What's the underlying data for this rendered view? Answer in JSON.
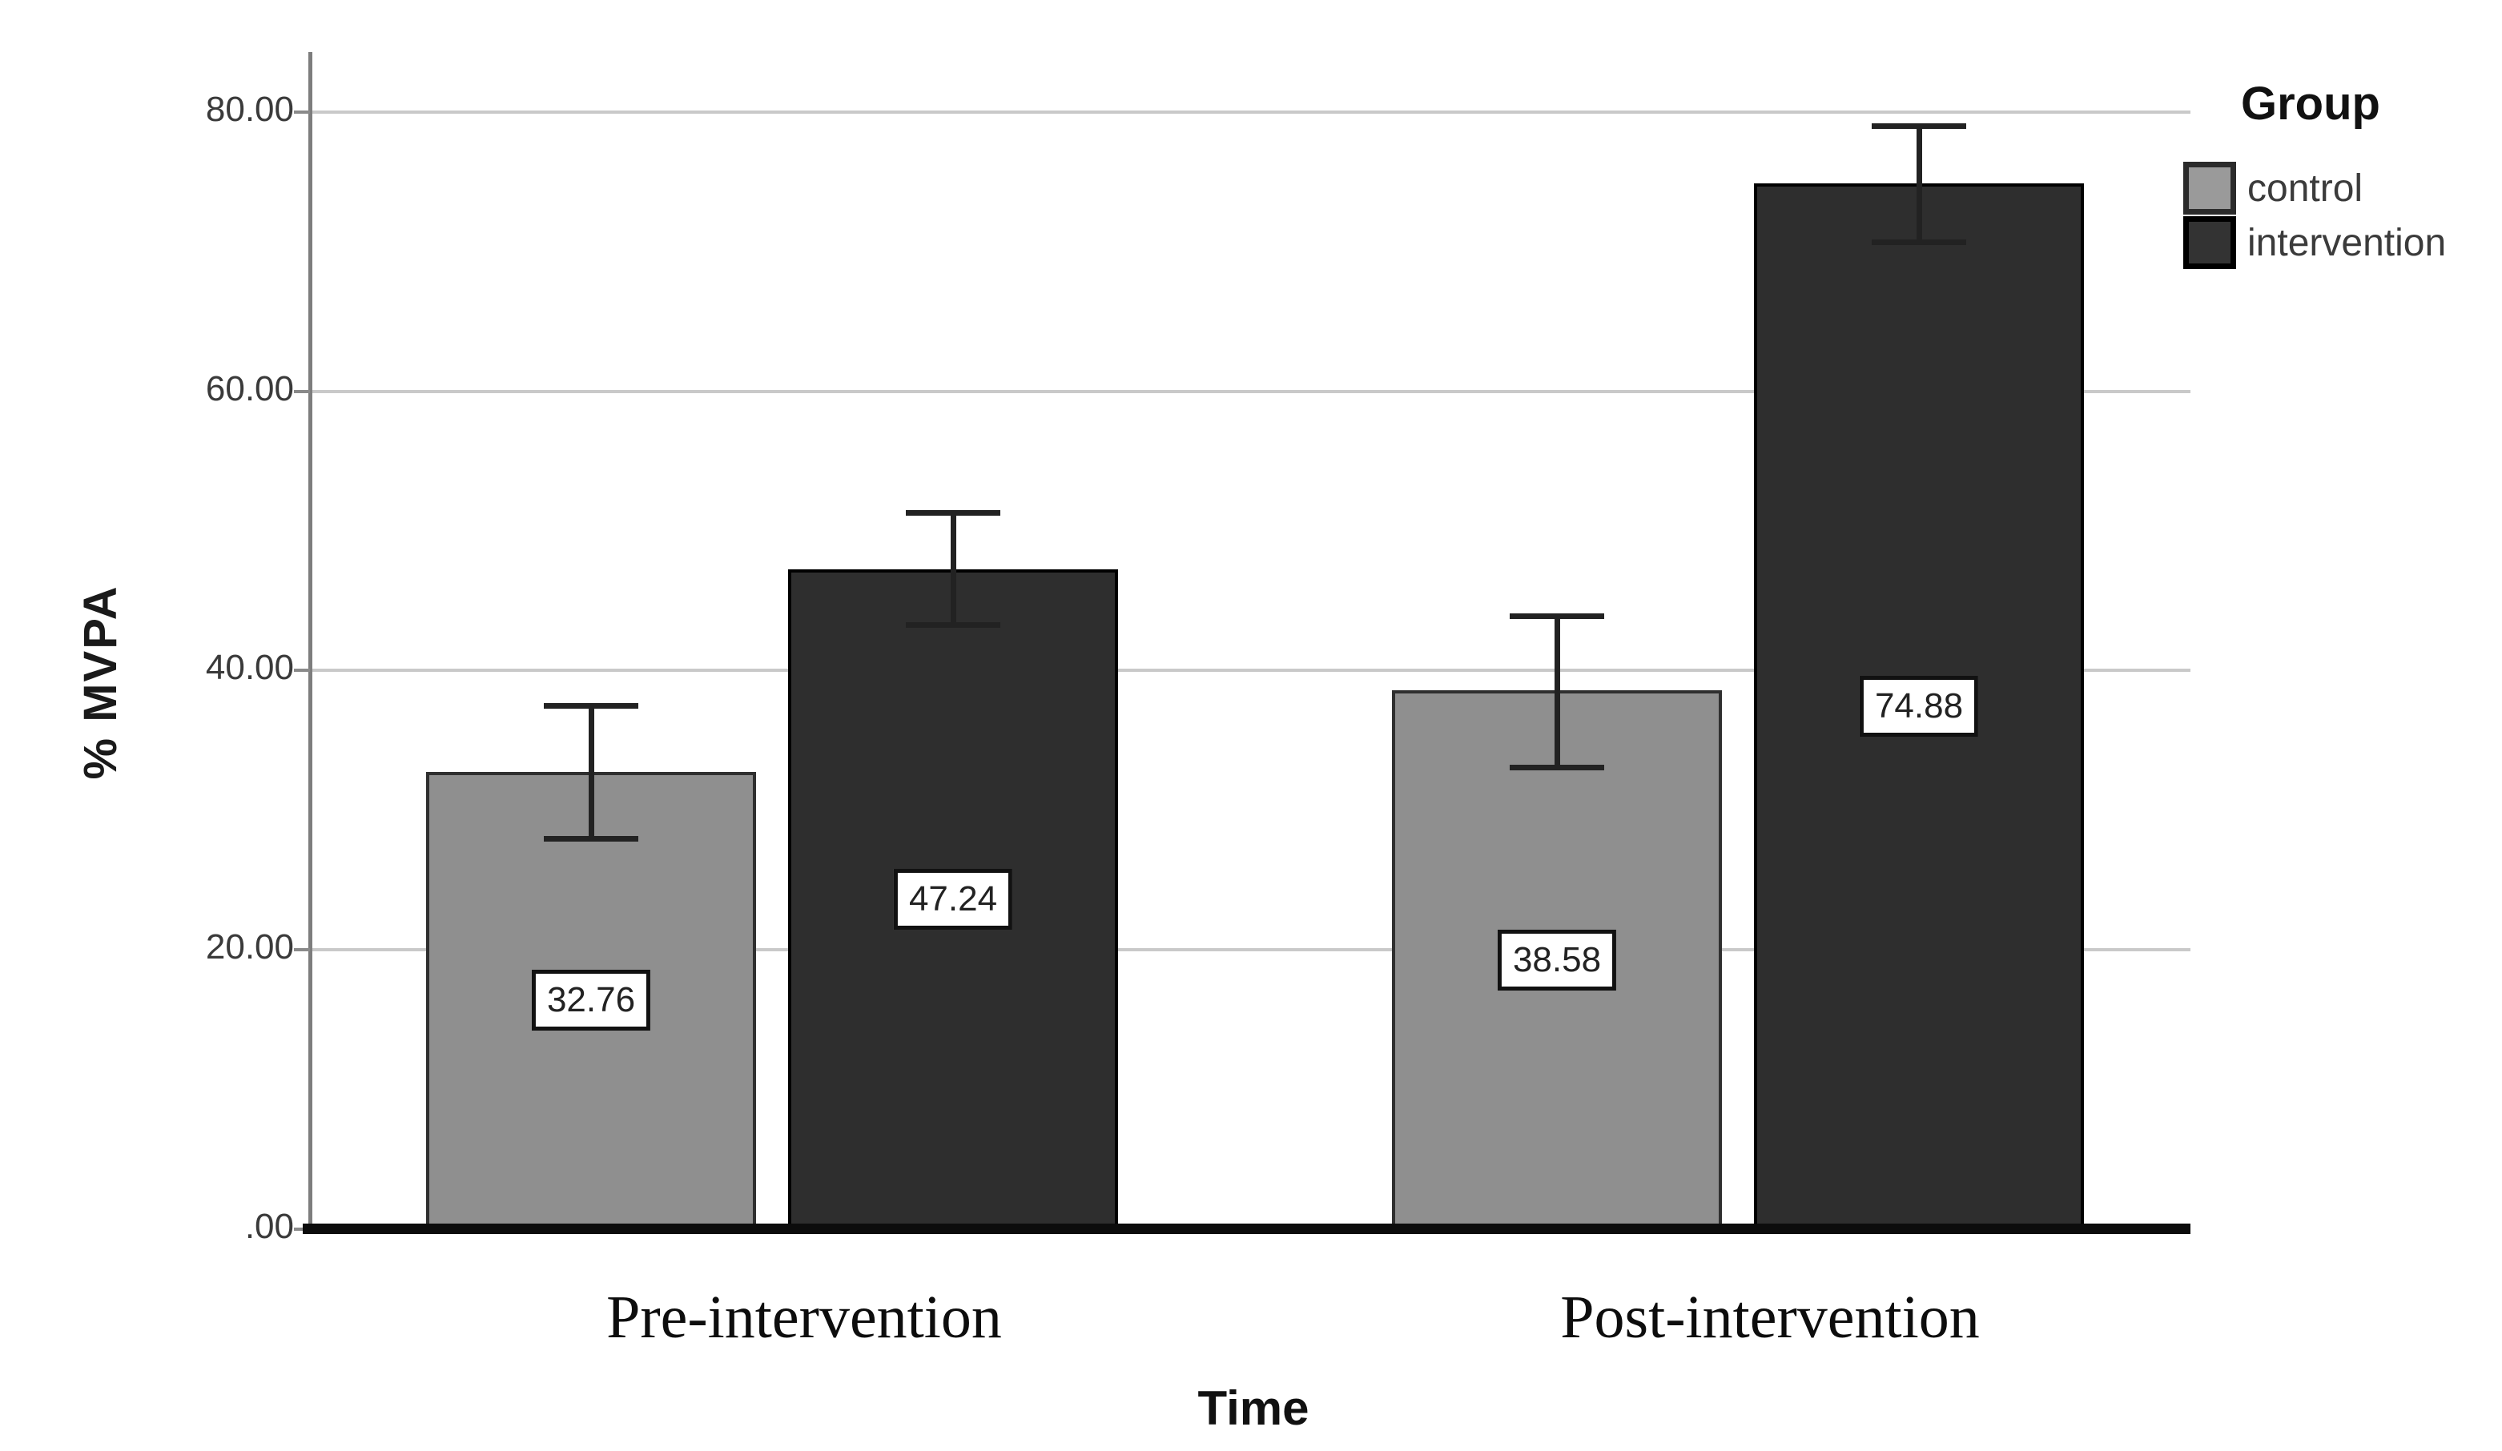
{
  "figure": {
    "background": "#ffffff"
  },
  "chart_data": {
    "type": "bar",
    "title": "",
    "xlabel": "Time",
    "ylabel": "% MVPA",
    "categories": [
      "Pre-intervention",
      "Post-intervention"
    ],
    "series": [
      {
        "name": "control",
        "color": "#8f8f8f",
        "border_color": "#2f2f2f",
        "values": [
          32.76,
          38.58
        ],
        "value_labels": [
          "32.76",
          "38.58"
        ],
        "error_low": [
          28.0,
          33.1
        ],
        "error_high": [
          37.5,
          43.9
        ]
      },
      {
        "name": "intervention",
        "color": "#2e2e2e",
        "border_color": "#000000",
        "values": [
          47.24,
          74.88
        ],
        "value_labels": [
          "47.24",
          "74.88"
        ],
        "error_low": [
          43.3,
          70.7
        ],
        "error_high": [
          51.3,
          79.0
        ]
      }
    ],
    "y_ticks": [
      {
        "label": ".00",
        "value": 0
      },
      {
        "label": "20.00",
        "value": 20
      },
      {
        "label": "40.00",
        "value": 40
      },
      {
        "label": "60.00",
        "value": 60
      },
      {
        "label": "80.00",
        "value": 80
      }
    ],
    "ylim": [
      0,
      84.3
    ],
    "grid": true,
    "error_bars": true,
    "legend": {
      "title": "Group",
      "position": "top-right",
      "entries": [
        "control",
        "intervention"
      ]
    }
  }
}
